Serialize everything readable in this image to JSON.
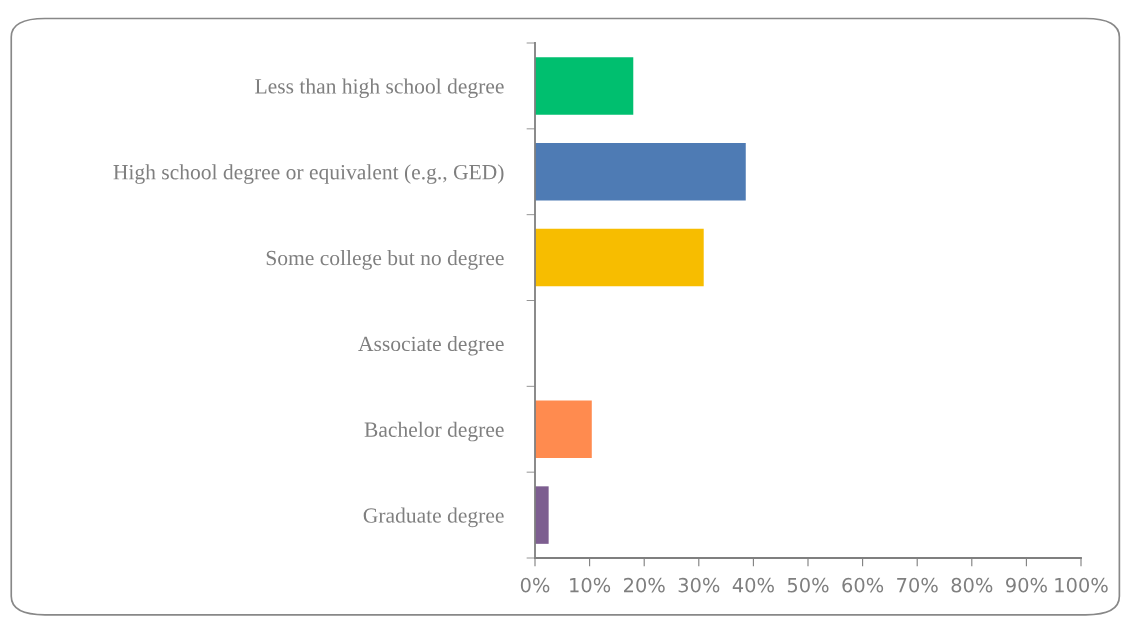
{
  "chart_data": {
    "type": "bar",
    "orientation": "horizontal",
    "categories": [
      "Less than high school degree",
      "High school degree or equivalent (e.g., GED)",
      "Some college but no degree",
      "Associate degree",
      "Bachelor degree",
      "Graduate degree"
    ],
    "values": [
      18.0,
      38.6,
      30.9,
      0,
      10.4,
      2.5
    ],
    "colors": [
      "#00bf6f",
      "#4e7bb4",
      "#f7bd00",
      "#9dd3e1",
      "#ff8b4f",
      "#7d5e90"
    ],
    "xlim": [
      0,
      100
    ],
    "xticks": [
      {
        "value": 0,
        "label": "0%"
      },
      {
        "value": 10,
        "label": "10%"
      },
      {
        "value": 20,
        "label": "20%"
      },
      {
        "value": 30,
        "label": "30%"
      },
      {
        "value": 40,
        "label": "40%"
      },
      {
        "value": 50,
        "label": "50%"
      },
      {
        "value": 60,
        "label": "60%"
      },
      {
        "value": 70,
        "label": "70%"
      },
      {
        "value": 80,
        "label": "80%"
      },
      {
        "value": 90,
        "label": "90%"
      },
      {
        "value": 100,
        "label": "100%"
      }
    ],
    "grid": false,
    "legend": false
  }
}
